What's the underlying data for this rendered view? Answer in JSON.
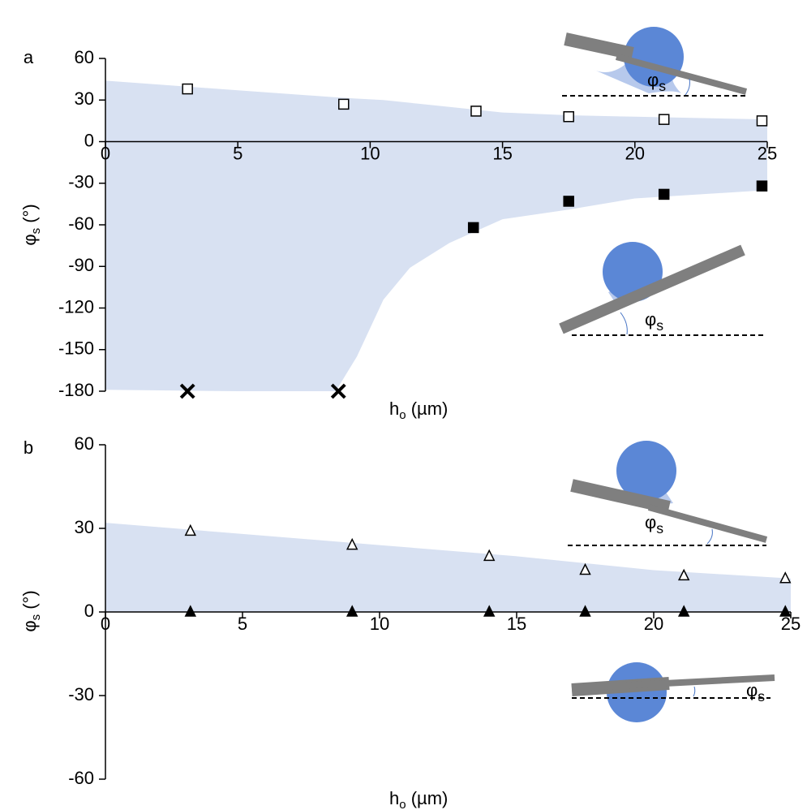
{
  "chart_data": [
    {
      "type": "scatter",
      "panel_label": "a",
      "x_label": {
        "text": "h",
        "subscript": "o",
        "suffix": " (µm)"
      },
      "y_label": {
        "text": "φ",
        "subscript": "s",
        "suffix": " (°)"
      },
      "xlim": [
        0,
        25
      ],
      "xticks": [
        0,
        5,
        10,
        15,
        20,
        25
      ],
      "ylim": [
        -180,
        60
      ],
      "yticks": [
        -180,
        -150,
        -120,
        -90,
        -60,
        -30,
        0,
        30,
        60
      ],
      "band": {
        "color": "#d8e1f2",
        "x": [
          0,
          5,
          8.7,
          9.5,
          10.5,
          11.5,
          13,
          15,
          17.5,
          20,
          25
        ],
        "upper": [
          44,
          37,
          32,
          31,
          30,
          28,
          25,
          21,
          19,
          18,
          16
        ],
        "lower": [
          -179,
          -180,
          -180,
          -155,
          -114,
          -91,
          -73,
          -56,
          -49,
          -41,
          -35
        ]
      },
      "series": [
        {
          "marker": "square-open",
          "color": "#000000",
          "x": [
            3.1,
            9,
            14,
            17.5,
            21.1,
            24.8
          ],
          "y": [
            38,
            27,
            22,
            18,
            16,
            15
          ]
        },
        {
          "marker": "square-filled",
          "color": "#000000",
          "x": [
            13.9,
            17.5,
            21.1,
            24.8
          ],
          "y": [
            -62,
            -43,
            -38,
            -32
          ]
        },
        {
          "marker": "cross",
          "color": "#000000",
          "x": [
            3.1,
            8.8
          ],
          "y": [
            -180,
            -180
          ]
        }
      ],
      "annotations": [
        {
          "text": "φ",
          "subscript": "s"
        },
        {
          "text": "φ",
          "subscript": "s"
        }
      ]
    },
    {
      "type": "scatter",
      "panel_label": "b",
      "x_label": {
        "text": "h",
        "subscript": "o",
        "suffix": " (µm)"
      },
      "y_label": {
        "text": "φ",
        "subscript": "s",
        "suffix": " (°)"
      },
      "xlim": [
        0,
        25
      ],
      "xticks": [
        0,
        5,
        10,
        15,
        20,
        25
      ],
      "ylim": [
        -60,
        60
      ],
      "yticks": [
        -60,
        -30,
        0,
        30,
        60
      ],
      "band": {
        "color": "#d8e1f2",
        "x": [
          0,
          5,
          10,
          15,
          20,
          25
        ],
        "upper": [
          32,
          28,
          24,
          20,
          15,
          12
        ],
        "lower": [
          0,
          0,
          0,
          0,
          0,
          0
        ]
      },
      "series": [
        {
          "marker": "triangle-open",
          "color": "#000000",
          "x": [
            3.1,
            9,
            14,
            17.5,
            21.1,
            24.8
          ],
          "y": [
            29,
            24,
            20,
            15,
            13,
            12
          ]
        },
        {
          "marker": "triangle-filled",
          "color": "#000000",
          "x": [
            3.1,
            9,
            14,
            17.5,
            21.1,
            24.8
          ],
          "y": [
            0,
            0,
            0,
            0,
            0,
            0
          ]
        }
      ],
      "annotations": [
        {
          "text": "φ",
          "subscript": "s"
        },
        {
          "text": "φ",
          "subscript": "s"
        }
      ]
    }
  ]
}
